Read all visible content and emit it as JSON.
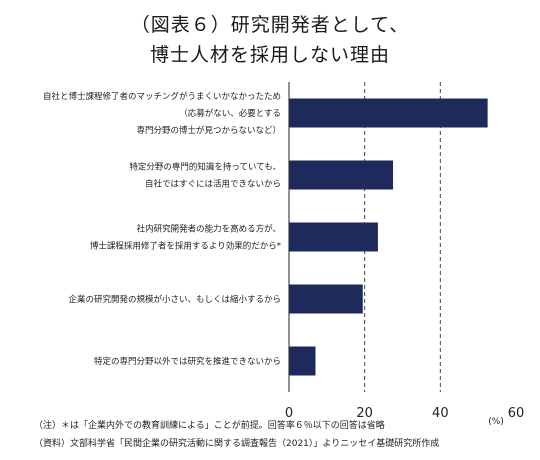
{
  "title": {
    "line1": "（図表６）研究開発者として、",
    "line2": "博士人材を採用しない理由"
  },
  "chart_data": {
    "type": "bar",
    "orientation": "horizontal",
    "categories": [
      [
        "自社と博士課程修了者のマッチングがうまくいかなかったため",
        "（応募がない、必要とする",
        "専門分野の博士が見つからないなど）"
      ],
      [
        "特定分野の専門的知識を持っていても、",
        "自社ではすぐには活用できないから"
      ],
      [
        "社内研究開発者の能力を高める方が、",
        "博士課程採用修了者を採用するより効果的だから*"
      ],
      [
        "企業の研究開発の規模が小さい、もしくは縮小するから"
      ],
      [
        "特定の専門分野以外では研究を推進できないから"
      ]
    ],
    "values": [
      52.5,
      27.5,
      23.5,
      19.5,
      7
    ],
    "xlim": [
      0,
      60
    ],
    "xticks": [
      0,
      20,
      40,
      60
    ],
    "unit": "(%)",
    "bar_color": "#1f2a5c",
    "grid": "dashed vertical at 20, 40"
  },
  "notes": {
    "note": "（注）＊は「企業内外での教育訓練による」ことが前提。回答率６％以下の回答は省略",
    "source": "（資料）文部科学省「民間企業の研究活動に関する調査報告（2021）」よりニッセイ基礎研究所作成"
  }
}
